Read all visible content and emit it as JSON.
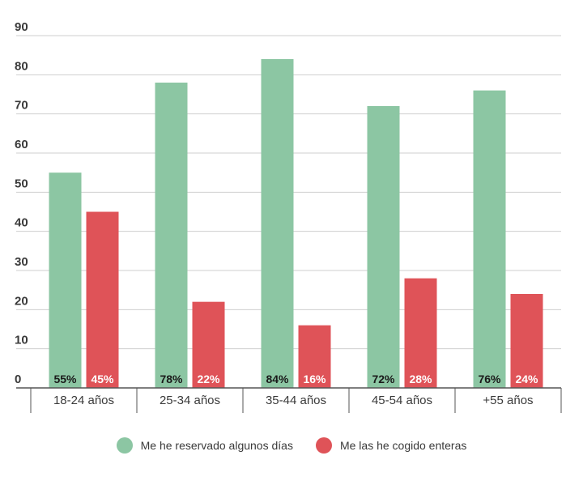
{
  "chart_data": {
    "type": "bar",
    "categories": [
      "18-24 años",
      "25-34 años",
      "35-44 años",
      "45-54 años",
      "+55 años"
    ],
    "series": [
      {
        "name": "Me he reservado algunos días",
        "values": [
          55,
          78,
          84,
          72,
          76
        ],
        "labels": [
          "55%",
          "78%",
          "84%",
          "72%",
          "76%"
        ],
        "color": "#8cc6a3"
      },
      {
        "name": "Me las he cogido enteras",
        "values": [
          45,
          22,
          16,
          28,
          24
        ],
        "labels": [
          "45%",
          "22%",
          "16%",
          "28%",
          "24%"
        ],
        "color": "#df5358"
      }
    ],
    "ylim": [
      0,
      90
    ],
    "yticks": [
      0,
      10,
      20,
      30,
      40,
      50,
      60,
      70,
      80,
      90
    ],
    "grid": true,
    "legend": "bottom-center"
  },
  "colors": {
    "grid": "#cfcfcf",
    "axis": "#555555",
    "label_dark": "#1a1a1a",
    "label_light": "#ffffff"
  }
}
